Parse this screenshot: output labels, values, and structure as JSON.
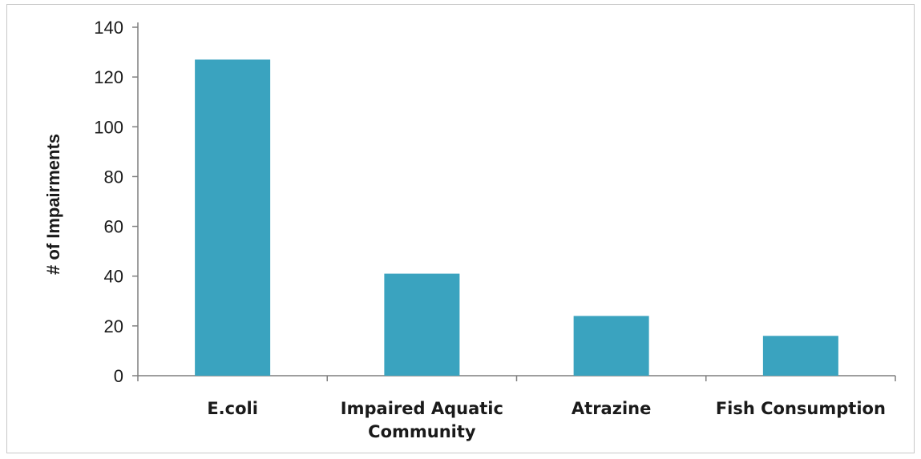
{
  "chart_data": {
    "type": "bar",
    "title": "",
    "xlabel": "",
    "ylabel": "# of Impairments",
    "categories": [
      [
        "E.coli"
      ],
      [
        "Impaired Aquatic",
        "Community"
      ],
      [
        "Atrazine"
      ],
      [
        "Fish Consumption"
      ]
    ],
    "values": [
      127,
      41,
      24,
      16
    ],
    "ylim": [
      0,
      140
    ],
    "yticks": [
      0,
      20,
      40,
      60,
      80,
      100,
      120,
      140
    ],
    "grid": false,
    "legend": "none",
    "bar_color": "#3aa3bf"
  }
}
